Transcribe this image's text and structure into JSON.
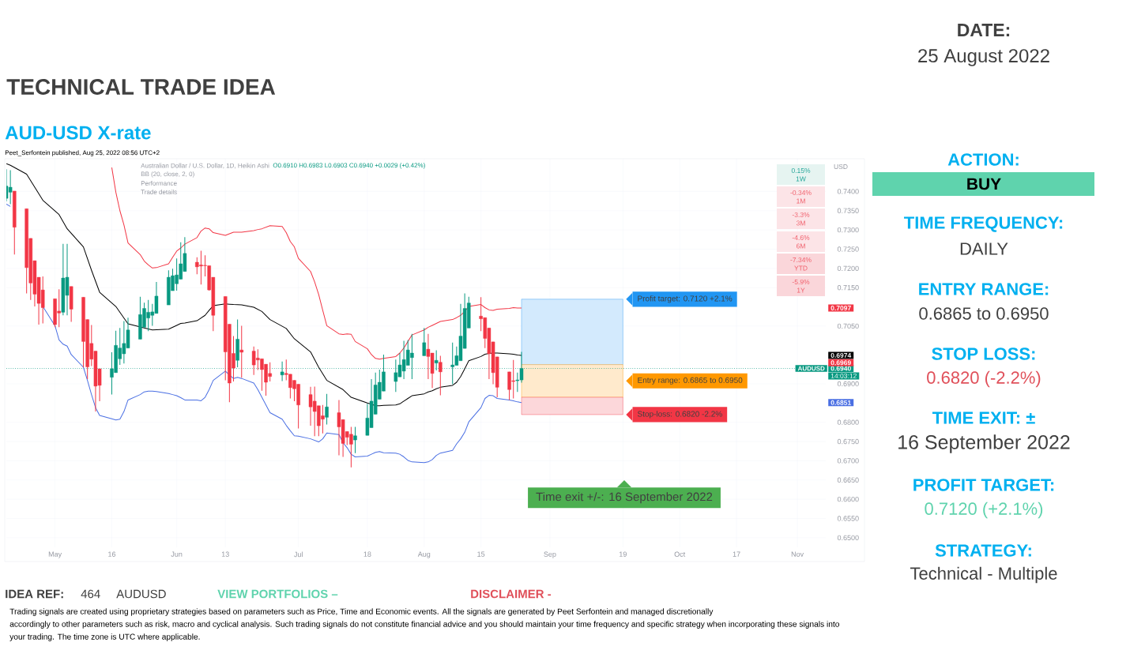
{
  "chart_data": {
    "type": "candlestick",
    "title": "TECHNICAL TRADE IDEA",
    "subtitle": "AUD-USD X-rate",
    "ylabel": "USD",
    "x": [
      "2022-04-20",
      "2022-04-21",
      "2022-04-22",
      "2022-04-25",
      "2022-04-26",
      "2022-04-27",
      "2022-04-28",
      "2022-04-29",
      "2022-05-02",
      "2022-05-03",
      "2022-05-04",
      "2022-05-05",
      "2022-05-06",
      "2022-05-09",
      "2022-05-10",
      "2022-05-11",
      "2022-05-12",
      "2022-05-13",
      "2022-05-16",
      "2022-05-17",
      "2022-05-18",
      "2022-05-19",
      "2022-05-20",
      "2022-05-23",
      "2022-05-24",
      "2022-05-25",
      "2022-05-26",
      "2022-05-27",
      "2022-05-30",
      "2022-05-31",
      "2022-06-01",
      "2022-06-02",
      "2022-06-03",
      "2022-06-06",
      "2022-06-07",
      "2022-06-08",
      "2022-06-09",
      "2022-06-10",
      "2022-06-13",
      "2022-06-14",
      "2022-06-15",
      "2022-06-16",
      "2022-06-17",
      "2022-06-20",
      "2022-06-21",
      "2022-06-22",
      "2022-06-23",
      "2022-06-24",
      "2022-06-27",
      "2022-06-28",
      "2022-06-29",
      "2022-06-30",
      "2022-07-01",
      "2022-07-04",
      "2022-07-05",
      "2022-07-06",
      "2022-07-07",
      "2022-07-08",
      "2022-07-11",
      "2022-07-12",
      "2022-07-13",
      "2022-07-14",
      "2022-07-15",
      "2022-07-18",
      "2022-07-19",
      "2022-07-20",
      "2022-07-21",
      "2022-07-22",
      "2022-07-25",
      "2022-07-26",
      "2022-07-27",
      "2022-07-28",
      "2022-07-29",
      "2022-08-01",
      "2022-08-02",
      "2022-08-03",
      "2022-08-04",
      "2022-08-05",
      "2022-08-08",
      "2022-08-09",
      "2022-08-10",
      "2022-08-11",
      "2022-08-12",
      "2022-08-15",
      "2022-08-16",
      "2022-08-17",
      "2022-08-18",
      "2022-08-19",
      "2022-08-22",
      "2022-08-23",
      "2022-08-24",
      "2022-08-25"
    ],
    "ohlc": [
      [
        0.7382,
        0.7458,
        0.7374,
        0.7414
      ],
      [
        0.7398,
        0.7455,
        0.7367,
        0.7411
      ],
      [
        0.7401,
        0.7401,
        0.7236,
        0.7307
      ],
      [
        0.7355,
        0.7355,
        0.7135,
        0.7202
      ],
      [
        0.7278,
        0.7278,
        0.7118,
        0.7162
      ],
      [
        0.722,
        0.722,
        0.7101,
        0.7133
      ],
      [
        0.7177,
        0.7177,
        0.7054,
        0.7109
      ],
      [
        0.7144,
        0.7179,
        0.7057,
        0.7098
      ],
      [
        0.7121,
        0.7121,
        0.7047,
        0.7054
      ],
      [
        0.7089,
        0.7146,
        0.7047,
        0.7084
      ],
      [
        0.7086,
        0.7264,
        0.7078,
        0.7175
      ],
      [
        0.713,
        0.7264,
        0.7078,
        0.7177
      ],
      [
        0.7153,
        0.7153,
        0.7061,
        0.7094
      ],
      [
        0.7125,
        0.7125,
        0.6943,
        0.701
      ],
      [
        0.7067,
        0.7067,
        0.6912,
        0.6944
      ],
      [
        0.7005,
        0.7053,
        0.6946,
        0.6964
      ],
      [
        0.6985,
        0.6985,
        0.6828,
        0.6894
      ],
      [
        0.6939,
        0.6939,
        0.6855,
        0.6896
      ],
      [
        0.6917,
        0.6982,
        0.6872,
        0.6939
      ],
      [
        0.6929,
        0.7038,
        0.6929,
        0.7
      ],
      [
        0.6965,
        0.7045,
        0.6949,
        0.6993
      ],
      [
        0.6978,
        0.7063,
        0.6953,
        0.7005
      ],
      [
        0.6993,
        0.7072,
        0.6993,
        0.704
      ],
      [
        0.7016,
        0.7126,
        0.7016,
        0.708
      ],
      [
        0.7047,
        0.7111,
        0.7047,
        0.7096
      ],
      [
        0.7071,
        0.7118,
        0.7037,
        0.7086
      ],
      [
        0.7078,
        0.7108,
        0.7051,
        0.7087
      ],
      [
        0.7083,
        0.7165,
        0.7083,
        0.7128
      ],
      [
        0.7105,
        0.7195,
        0.7105,
        0.7177
      ],
      [
        0.7142,
        0.7199,
        0.7142,
        0.7181
      ],
      [
        0.716,
        0.7226,
        0.7142,
        0.7183
      ],
      [
        0.7172,
        0.7268,
        0.7172,
        0.7212
      ],
      [
        0.7192,
        0.7281,
        0.7192,
        0.7239
      ],
      [
        0.7216,
        0.7229,
        0.7185,
        0.7204
      ],
      [
        0.7209,
        0.7246,
        0.7158,
        0.7206
      ],
      [
        0.7208,
        0.7234,
        0.7179,
        0.7207
      ],
      [
        0.7207,
        0.7207,
        0.7142,
        0.7144
      ],
      [
        0.7177,
        0.7177,
        0.7037,
        0.7078
      ],
      [
        0.7127,
        0.7127,
        0.6909,
        0.6983
      ],
      [
        0.7055,
        0.7055,
        0.6852,
        0.6902
      ],
      [
        0.6979,
        0.7024,
        0.6906,
        0.6941
      ],
      [
        0.6961,
        0.7067,
        0.6943,
        0.7016
      ],
      [
        0.6988,
        0.7051,
        0.6916,
        0.6982
      ],
      [
        0.6985,
        0.6997,
        0.6923,
        0.6949
      ],
      [
        0.6967,
        0.699,
        0.6936,
        0.6962
      ],
      [
        0.6965,
        0.6965,
        0.6882,
        0.6937
      ],
      [
        0.6951,
        0.6951,
        0.6869,
        0.6904
      ],
      [
        0.6927,
        0.6956,
        0.6906,
        0.6919
      ],
      [
        0.6923,
        0.6958,
        0.6907,
        0.6931
      ],
      [
        0.6927,
        0.6963,
        0.6909,
        0.6924
      ],
      [
        0.6925,
        0.6925,
        0.6862,
        0.689
      ],
      [
        0.6909,
        0.6909,
        0.6855,
        0.6887
      ],
      [
        0.6899,
        0.6899,
        0.6784,
        0.6845
      ],
      [
        0.6872,
        0.6892,
        0.6791,
        0.684
      ],
      [
        0.6855,
        0.6893,
        0.6764,
        0.6828
      ],
      [
        0.6843,
        0.6843,
        0.6764,
        0.6791
      ],
      [
        0.6817,
        0.6845,
        0.6771,
        0.6808
      ],
      [
        0.6813,
        0.6874,
        0.6794,
        0.684
      ],
      [
        0.6825,
        0.6858,
        0.6714,
        0.6788
      ],
      [
        0.6807,
        0.6807,
        0.671,
        0.6745
      ],
      [
        0.6776,
        0.6776,
        0.6741,
        0.6761
      ],
      [
        0.6769,
        0.6788,
        0.6683,
        0.6743
      ],
      [
        0.6754,
        0.6788,
        0.672,
        0.6765
      ],
      [
        0.6766,
        0.6848,
        0.6766,
        0.6811
      ],
      [
        0.6786,
        0.6912,
        0.6786,
        0.6855
      ],
      [
        0.6821,
        0.6929,
        0.6821,
        0.6897
      ],
      [
        0.686,
        0.6937,
        0.686,
        0.6904
      ],
      [
        0.6881,
        0.6976,
        0.6881,
        0.6931
      ],
      [
        0.6906,
        0.6963,
        0.6879,
        0.6929
      ],
      [
        0.6918,
        0.698,
        0.6918,
        0.6949
      ],
      [
        0.6933,
        0.7012,
        0.6912,
        0.6963
      ],
      [
        0.6948,
        0.7014,
        0.6948,
        0.6988
      ],
      [
        0.6968,
        0.703,
        0.6912,
        0.698
      ],
      [
        0.6973,
        0.7045,
        0.6973,
        0.7007
      ],
      [
        0.699,
        0.703,
        0.6912,
        0.6971
      ],
      [
        0.698,
        0.698,
        0.6889,
        0.6927
      ],
      [
        0.6954,
        0.6987,
        0.6935,
        0.6961
      ],
      [
        0.6956,
        0.6973,
        0.687,
        0.6931
      ],
      [
        0.6944,
        0.7007,
        0.6899,
        0.6949
      ],
      [
        0.6948,
        0.6997,
        0.6948,
        0.6973
      ],
      [
        0.696,
        0.7108,
        0.696,
        0.7024
      ],
      [
        0.6992,
        0.7135,
        0.6992,
        0.7096
      ],
      [
        0.7045,
        0.7126,
        0.7045,
        0.711
      ],
      [
        0.7076,
        0.7125,
        0.7037,
        0.7069
      ],
      [
        0.7072,
        0.7072,
        0.6993,
        0.7018
      ],
      [
        0.7045,
        0.7045,
        0.6912,
        0.6978
      ],
      [
        0.7009,
        0.7009,
        0.6899,
        0.6929
      ],
      [
        0.697,
        0.697,
        0.6865,
        0.6891
      ],
      [
        0.6931,
        0.6931,
        0.6858,
        0.6885
      ],
      [
        0.6908,
        0.6962,
        0.6862,
        0.6906
      ],
      [
        0.6908,
        0.6929,
        0.6879,
        0.691
      ],
      [
        0.691,
        0.6983,
        0.6903,
        0.694
      ]
    ],
    "colors": [
      "#089981",
      "#089981",
      "#f23645",
      "#f23645",
      "#f23645",
      "#f23645",
      "#f23645",
      "#f23645",
      "#f23645",
      "#f23645",
      "#089981",
      "#089981",
      "#f23645",
      "#f23645",
      "#f23645",
      "#f23645",
      "#f23645",
      "#f23645",
      "#089981",
      "#089981",
      "#089981",
      "#089981",
      "#089981",
      "#089981",
      "#089981",
      "#089981",
      "#089981",
      "#089981",
      "#089981",
      "#089981",
      "#089981",
      "#089981",
      "#089981",
      "#f23645",
      "#f23645",
      "#f23645",
      "#f23645",
      "#f23645",
      "#f23645",
      "#f23645",
      "#f23645",
      "#089981",
      "#f23645",
      "#f23645",
      "#f23645",
      "#f23645",
      "#f23645",
      "#f23645",
      "#089981",
      "#f23645",
      "#f23645",
      "#f23645",
      "#f23645",
      "#f23645",
      "#f23645",
      "#f23645",
      "#f23645",
      "#089981",
      "#f23645",
      "#f23645",
      "#f23645",
      "#f23645",
      "#089981",
      "#089981",
      "#089981",
      "#089981",
      "#089981",
      "#089981",
      "#089981",
      "#089981",
      "#089981",
      "#089981",
      "#089981",
      "#089981",
      "#f23645",
      "#f23645",
      "#089981",
      "#f23645",
      "#089981",
      "#089981",
      "#089981",
      "#089981",
      "#089981",
      "#f23645",
      "#f23645",
      "#f23645",
      "#f23645",
      "#f23645",
      "#f23645",
      "#f23645",
      "#089981",
      "#089981"
    ],
    "series": [
      {
        "type": "line",
        "color": "#f23645",
        "x": [
          "2022-05-16",
          "2022-05-17",
          "2022-05-18",
          "2022-05-19",
          "2022-05-20",
          "2022-05-23",
          "2022-05-24",
          "2022-05-25",
          "2022-05-26",
          "2022-05-27",
          "2022-05-30",
          "2022-05-31",
          "2022-06-01",
          "2022-06-02",
          "2022-06-03",
          "2022-06-06",
          "2022-06-07",
          "2022-06-08",
          "2022-06-09",
          "2022-06-10",
          "2022-06-13",
          "2022-06-14",
          "2022-06-15",
          "2022-06-16",
          "2022-06-17",
          "2022-06-20",
          "2022-06-21",
          "2022-06-22",
          "2022-06-23",
          "2022-06-24",
          "2022-06-27",
          "2022-06-28",
          "2022-06-29",
          "2022-06-30",
          "2022-07-01",
          "2022-07-04",
          "2022-07-05",
          "2022-07-06",
          "2022-07-07",
          "2022-07-08",
          "2022-07-11",
          "2022-07-12",
          "2022-07-13",
          "2022-07-14",
          "2022-07-15",
          "2022-07-18",
          "2022-07-19",
          "2022-07-20",
          "2022-07-21",
          "2022-07-22",
          "2022-07-25",
          "2022-07-26",
          "2022-07-27",
          "2022-07-28",
          "2022-07-29",
          "2022-08-01",
          "2022-08-02",
          "2022-08-03",
          "2022-08-04",
          "2022-08-05",
          "2022-08-08",
          "2022-08-09",
          "2022-08-10",
          "2022-08-11",
          "2022-08-12",
          "2022-08-15",
          "2022-08-16",
          "2022-08-17",
          "2022-08-18",
          "2022-08-19",
          "2022-08-22",
          "2022-08-23",
          "2022-08-24",
          "2022-08-25"
        ],
        "values": [
          0.7462,
          0.7398,
          0.735,
          0.7313,
          0.7266,
          0.7236,
          0.7219,
          0.7209,
          0.7201,
          0.7202,
          0.7212,
          0.7229,
          0.7245,
          0.7253,
          0.7263,
          0.728,
          0.7297,
          0.7305,
          0.7303,
          0.7293,
          0.7286,
          0.729,
          0.7294,
          0.7294,
          0.7294,
          0.7298,
          0.7301,
          0.7303,
          0.7307,
          0.7311,
          0.7309,
          0.7293,
          0.727,
          0.7256,
          0.7226,
          0.7192,
          0.7165,
          0.7132,
          0.7091,
          0.7051,
          0.703,
          0.7028,
          0.703,
          0.7029,
          0.701,
          0.6991,
          0.6976,
          0.6966,
          0.6964,
          0.6966,
          0.6971,
          0.698,
          0.6993,
          0.701,
          0.7027,
          0.704,
          0.7047,
          0.7052,
          0.7057,
          0.7062,
          0.7067,
          0.7072,
          0.7078,
          0.7088,
          0.7101,
          0.7106,
          0.7098,
          0.7092,
          0.7091,
          0.7094,
          0.7096,
          0.7098,
          0.7097,
          0.7097
        ]
      },
      {
        "type": "line",
        "color": "#000000",
        "x": [
          "2022-04-20",
          "2022-04-21",
          "2022-04-25",
          "2022-04-27",
          "2022-04-29",
          "2022-05-03",
          "2022-05-05",
          "2022-05-09",
          "2022-05-11",
          "2022-05-13",
          "2022-05-17",
          "2022-05-19",
          "2022-05-20",
          "2022-05-24",
          "2022-05-26",
          "2022-05-30",
          "2022-06-01",
          "2022-06-02",
          "2022-06-03",
          "2022-06-06",
          "2022-06-08",
          "2022-06-09",
          "2022-06-10",
          "2022-06-13",
          "2022-06-14",
          "2022-06-15",
          "2022-06-17",
          "2022-06-20",
          "2022-06-22",
          "2022-06-24",
          "2022-06-28",
          "2022-06-30",
          "2022-07-04",
          "2022-07-06",
          "2022-07-08",
          "2022-07-12",
          "2022-07-14",
          "2022-07-18",
          "2022-07-19",
          "2022-07-20",
          "2022-07-21",
          "2022-07-22",
          "2022-07-25",
          "2022-07-26",
          "2022-07-27",
          "2022-07-28",
          "2022-07-29",
          "2022-08-01",
          "2022-08-02",
          "2022-08-03",
          "2022-08-04",
          "2022-08-05",
          "2022-08-08",
          "2022-08-09",
          "2022-08-10",
          "2022-08-11",
          "2022-08-12",
          "2022-08-15",
          "2022-08-16",
          "2022-08-17",
          "2022-08-18",
          "2022-08-19",
          "2022-08-22",
          "2022-08-23",
          "2022-08-24",
          "2022-08-25"
        ],
        "values": [
          0.7472,
          0.7468,
          0.7445,
          0.7411,
          0.7377,
          0.734,
          0.7303,
          0.7256,
          0.7195,
          0.7138,
          0.7101,
          0.7071,
          0.7056,
          0.7045,
          0.704,
          0.7042,
          0.7052,
          0.7057,
          0.7058,
          0.7064,
          0.7078,
          0.7091,
          0.7103,
          0.7108,
          0.7107,
          0.7106,
          0.7105,
          0.7099,
          0.7088,
          0.7067,
          0.7044,
          0.7017,
          0.6983,
          0.6943,
          0.6909,
          0.6885,
          0.6865,
          0.685,
          0.6847,
          0.6843,
          0.6843,
          0.6844,
          0.6845,
          0.6848,
          0.6855,
          0.6862,
          0.6869,
          0.6874,
          0.6879,
          0.6882,
          0.6887,
          0.6891,
          0.6896,
          0.6904,
          0.6919,
          0.6939,
          0.696,
          0.6971,
          0.6977,
          0.6979,
          0.698,
          0.698,
          0.6978,
          0.6977,
          0.6975,
          0.6974
        ]
      },
      {
        "type": "line",
        "color": "#4a6fe3",
        "values": [
          0.7367,
          0.7361,
          null,
          null,
          null,
          null,
          null,
          0.7101,
          0.7051,
          0.7014,
          0.7003,
          0.6998,
          0.6976,
          0.6943,
          0.6909,
          0.6872,
          0.6838,
          0.6818,
          0.6809,
          0.6806,
          0.6808,
          0.6828,
          0.6858,
          0.6872,
          0.6879,
          0.6881,
          0.6881,
          0.688,
          0.6875,
          0.6872,
          0.6869,
          0.6864,
          0.6858,
          0.6858,
          0.6856,
          0.6865,
          0.6885,
          0.6909,
          0.6933,
          0.6923,
          0.6914,
          0.6917,
          0.6914,
          0.6902,
          0.6885,
          0.6865,
          0.6845,
          0.6825,
          0.6808,
          0.6792,
          0.6778,
          0.6765,
          0.6764,
          0.6757,
          0.6753,
          0.6749,
          0.6757,
          0.6772,
          0.6768,
          0.6747,
          0.6734,
          0.6717,
          0.671,
          0.6712,
          0.6717,
          0.6722,
          0.6724,
          0.6721,
          0.672,
          0.6717,
          0.671,
          0.6701,
          0.6697,
          0.6695,
          0.6697,
          0.6703,
          0.6714,
          0.672,
          0.6727,
          0.6744,
          0.6757,
          0.6774,
          0.6801,
          0.6838,
          0.6862,
          0.687,
          0.6869,
          0.6862,
          0.6858,
          0.6856,
          0.6853,
          0.6851
        ]
      }
    ],
    "xlim": [
      "2022-04-20",
      "2022-11-08"
    ],
    "xticks": [
      {
        "value": "2022-05-02",
        "label": "May"
      },
      {
        "value": "2022-05-16",
        "label": "16"
      },
      {
        "value": "2022-06-01",
        "label": "Jun"
      },
      {
        "value": "2022-06-13",
        "label": "13"
      },
      {
        "value": "2022-07-01",
        "label": "Jul"
      },
      {
        "value": "2022-07-18",
        "label": "18"
      },
      {
        "value": "2022-08-01",
        "label": "Aug"
      },
      {
        "value": "2022-08-15",
        "label": "15"
      },
      {
        "value": "2022-09-01",
        "label": "Sep"
      },
      {
        "value": "2022-09-19",
        "label": "19"
      },
      {
        "value": "2022-10-03",
        "label": "Oct"
      },
      {
        "value": "2022-10-17",
        "label": "17"
      },
      {
        "value": "2022-11-01",
        "label": "Nov"
      }
    ],
    "ylim": [
      0.6475,
      0.7485
    ],
    "yticks": [
      {
        "value": 0.65,
        "label": "0.6500"
      },
      {
        "value": 0.655,
        "label": "0.6550"
      },
      {
        "value": 0.66,
        "label": "0.6600"
      },
      {
        "value": 0.665,
        "label": "0.6650"
      },
      {
        "value": 0.67,
        "label": "0.6700"
      },
      {
        "value": 0.675,
        "label": "0.6750"
      },
      {
        "value": 0.68,
        "label": "0.6800"
      },
      {
        "value": 0.69,
        "label": "0.6900"
      },
      {
        "value": 0.705,
        "label": "0.7050"
      },
      {
        "value": 0.715,
        "label": "0.7150"
      },
      {
        "value": 0.72,
        "label": "0.7200"
      },
      {
        "value": 0.725,
        "label": "0.7250"
      },
      {
        "value": 0.73,
        "label": "0.7300"
      },
      {
        "value": 0.735,
        "label": "0.7350"
      },
      {
        "value": 0.74,
        "label": "0.7400"
      }
    ],
    "grid": true,
    "ref_lines": [
      {
        "axis": "y",
        "value": 0.694,
        "color": "#089981",
        "line_style": "dotted",
        "label": "0.6940"
      }
    ],
    "bands": [
      {
        "axis": "y",
        "from": 0.695,
        "to": 0.712,
        "label": "Profit target: 0.7120 +2.1%",
        "color": "#2196f3"
      },
      {
        "axis": "y",
        "from": 0.6865,
        "to": 0.695,
        "label": "Entry range: 0.6865 to 0.6950",
        "color": "#ff9800"
      },
      {
        "axis": "y",
        "from": 0.682,
        "to": 0.6865,
        "label": "Stop-loss: 0.6820 -2.2%",
        "color": "#f23645"
      }
    ],
    "annotations": [
      "Peet_Serfontein published, Aug 25, 2022 08:56 UTC+2",
      "Australian Dollar / U.S. Dollar, 1D, Heikin Ashi",
      "O0.6910 H0.6983 L0.6903 C0.6940 +0.0029 (+0.42%)",
      "BB (20, close, 2, 0)",
      "Performance",
      "Trade details",
      "0.15%",
      "1W",
      "-0.34%",
      "1M",
      "-3.3%",
      "3M",
      "-4.6%",
      "6M",
      "-7.34%",
      "YTD",
      "-5.9%",
      "1Y",
      "AUDUSD",
      "14:03:12",
      "0.6969",
      "Time exit +/-: 16 September 2022",
      "DATE:",
      "25 August 2022",
      "ACTION:",
      "BUY",
      "TIME FREQUENCY:",
      "DAILY",
      "ENTRY RANGE:",
      "0.6865 to 0.6950",
      "STOP LOSS:",
      "0.6820 (-2.2%)",
      "TIME EXIT: ±",
      "16 September 2022",
      "PROFIT TARGET:",
      "0.7120 (+2.1%)",
      "STRATEGY:",
      "Technical - Multiple",
      "IDEA REF:",
      "464",
      "AUDUSD",
      "VIEW PORTFOLIOS –",
      "DISCLAIMER -",
      "Trading signals are created using proprietary strategies based on parameters such as Price, Time and Economic events.  All the signals are generated by Peet Serfontein and managed discretionally",
      "accordingly to other parameters such as risk, macro and cyclical analysis. Such trading signals do not constitute financial advice and you should maintain your time frequency and specific strategy when incorporating these signals into",
      "your trading. The time zone is UTC where applicable.",
      "0.7097",
      "0.6974",
      "0.6851"
    ]
  }
}
